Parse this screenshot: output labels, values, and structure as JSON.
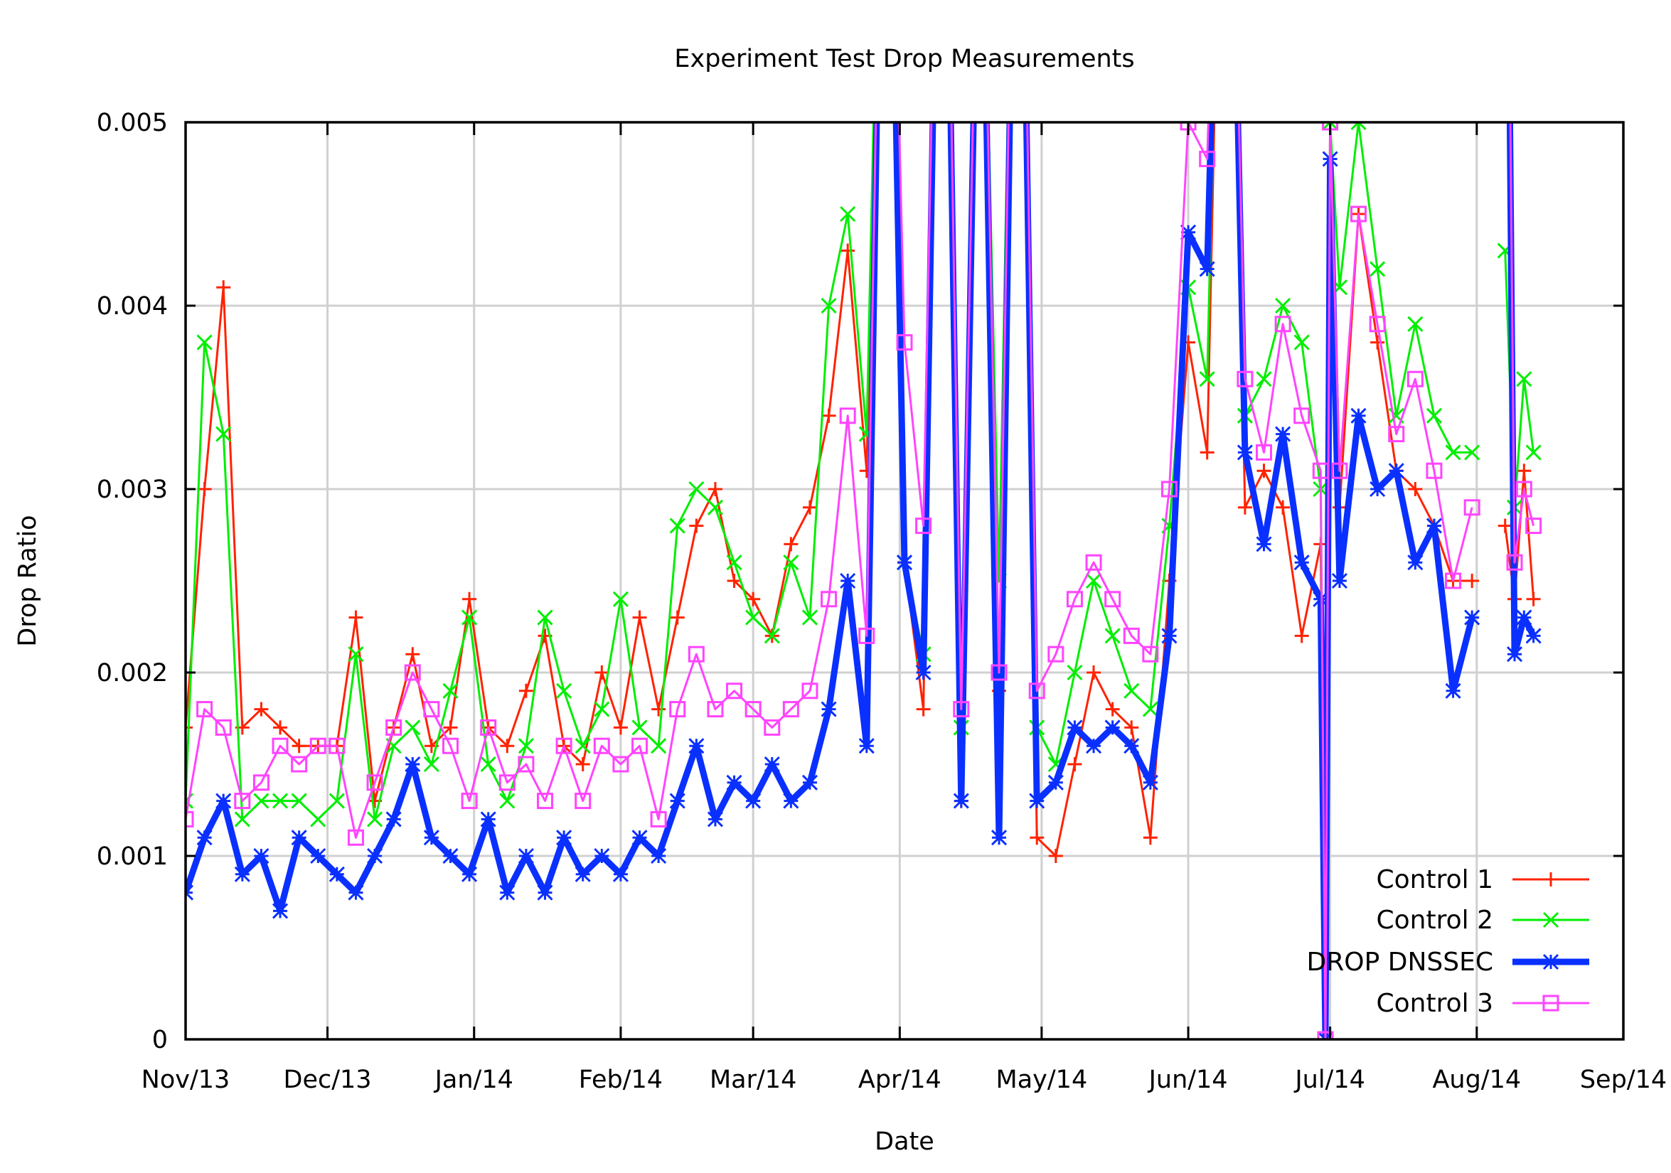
{
  "chart_data": {
    "type": "line",
    "title": "Experiment Test Drop Measurements",
    "xlabel": "Date",
    "ylabel": "Drop Ratio",
    "xlim": [
      "2013-11-01",
      "2014-09-01"
    ],
    "ylim": [
      0,
      0.005
    ],
    "grid": true,
    "legend": "bottom-right",
    "x_ticks": [
      {
        "date": "2013-11-01",
        "label": "Nov/13"
      },
      {
        "date": "2013-12-01",
        "label": "Dec/13"
      },
      {
        "date": "2014-01-01",
        "label": "Jan/14"
      },
      {
        "date": "2014-02-01",
        "label": "Feb/14"
      },
      {
        "date": "2014-03-01",
        "label": "Mar/14"
      },
      {
        "date": "2014-04-01",
        "label": "Apr/14"
      },
      {
        "date": "2014-05-01",
        "label": "May/14"
      },
      {
        "date": "2014-06-01",
        "label": "Jun/14"
      },
      {
        "date": "2014-07-01",
        "label": "Jul/14"
      },
      {
        "date": "2014-08-01",
        "label": "Aug/14"
      },
      {
        "date": "2014-09-01",
        "label": "Sep/14"
      }
    ],
    "y_ticks": [
      {
        "value": 0,
        "label": "0"
      },
      {
        "value": 0.001,
        "label": "0.001"
      },
      {
        "value": 0.002,
        "label": "0.002"
      },
      {
        "value": 0.003,
        "label": "0.003"
      },
      {
        "value": 0.004,
        "label": "0.004"
      },
      {
        "value": 0.005,
        "label": "0.005"
      }
    ],
    "x": [
      "2013-11-01",
      "2013-11-05",
      "2013-11-09",
      "2013-11-13",
      "2013-11-17",
      "2013-11-21",
      "2013-11-25",
      "2013-11-29",
      "2013-12-03",
      "2013-12-07",
      "2013-12-11",
      "2013-12-15",
      "2013-12-19",
      "2013-12-23",
      "2013-12-27",
      "2013-12-31",
      "2014-01-04",
      "2014-01-08",
      "2014-01-12",
      "2014-01-16",
      "2014-01-20",
      "2014-01-24",
      "2014-01-28",
      "2014-02-01",
      "2014-02-05",
      "2014-02-09",
      "2014-02-13",
      "2014-02-17",
      "2014-02-21",
      "2014-02-25",
      "2014-03-01",
      "2014-03-05",
      "2014-03-09",
      "2014-03-13",
      "2014-03-17",
      "2014-03-21",
      "2014-03-25",
      "2014-03-29",
      "2014-04-02",
      "2014-04-06",
      "2014-04-10",
      "2014-04-14",
      "2014-04-18",
      "2014-04-22",
      "2014-04-26",
      "2014-04-30",
      "2014-05-04",
      "2014-05-08",
      "2014-05-12",
      "2014-05-16",
      "2014-05-20",
      "2014-05-24",
      "2014-05-28",
      "2014-06-01",
      "2014-06-05",
      "2014-06-09",
      "2014-06-13",
      "2014-06-17",
      "2014-06-21",
      "2014-06-25",
      "2014-06-29",
      "2014-06-30",
      "2014-07-01",
      "2014-07-03",
      "2014-07-07",
      "2014-07-11",
      "2014-07-15",
      "2014-07-19",
      "2014-07-23",
      "2014-07-27",
      "2014-07-31",
      "2014-08-04",
      "2014-08-07",
      "2014-08-09",
      "2014-08-11",
      "2014-08-13"
    ],
    "series": [
      {
        "name": "Control 1",
        "color": "#ff2200",
        "marker": "plus",
        "line_weight": "thin",
        "values": [
          0.0017,
          0.003,
          0.0041,
          0.0017,
          0.0018,
          0.0017,
          0.0016,
          0.0016,
          0.0016,
          0.0023,
          0.0013,
          0.0017,
          0.0021,
          0.0016,
          0.0017,
          0.0024,
          0.0017,
          0.0016,
          0.0019,
          0.0022,
          0.0016,
          0.0015,
          0.002,
          0.0017,
          0.0023,
          0.0018,
          0.0023,
          0.0028,
          0.003,
          0.0025,
          0.0024,
          0.0022,
          0.0027,
          0.0029,
          0.0034,
          0.0043,
          0.0031,
          0.008,
          0.0026,
          0.0018,
          0.008,
          0.0013,
          0.007,
          0.0019,
          0.008,
          0.0011,
          0.001,
          0.0015,
          0.002,
          0.0018,
          0.0017,
          0.0011,
          0.0025,
          0.0038,
          0.0032,
          0.008,
          0.0029,
          0.0031,
          0.0029,
          0.0022,
          0.0027,
          0,
          0.005,
          0.0029,
          0.0045,
          0.0038,
          0.0031,
          0.003,
          0.0028,
          0.0025,
          0.0025,
          null,
          0.0028,
          0.0024,
          0.0031,
          0.0024
        ]
      },
      {
        "name": "Control 2",
        "color": "#00ee00",
        "marker": "cross",
        "line_weight": "thin",
        "values": [
          0.0013,
          0.0038,
          0.0033,
          0.0012,
          0.0013,
          0.0013,
          0.0013,
          0.0012,
          0.0013,
          0.0021,
          0.0012,
          0.0016,
          0.0017,
          0.0015,
          0.0019,
          0.0023,
          0.0015,
          0.0013,
          0.0016,
          0.0023,
          0.0019,
          0.0016,
          0.0018,
          0.0024,
          0.0017,
          0.0016,
          0.0028,
          0.003,
          0.0029,
          0.0026,
          0.0023,
          0.0022,
          0.0026,
          0.0023,
          0.004,
          0.0045,
          0.0033,
          0.008,
          0.0026,
          0.0021,
          0.008,
          0.0017,
          0.007,
          0.0025,
          0.008,
          0.0017,
          0.0015,
          0.002,
          0.0025,
          0.0022,
          0.0019,
          0.0018,
          0.0028,
          0.0041,
          0.0036,
          0.008,
          0.0034,
          0.0036,
          0.004,
          0.0038,
          0.003,
          0,
          0.005,
          0.0041,
          0.005,
          0.0042,
          0.0034,
          0.0039,
          0.0034,
          0.0032,
          0.0032,
          null,
          0.0043,
          0.0029,
          0.0036,
          0.0032
        ]
      },
      {
        "name": "DROP DNSSEC",
        "color": "#0a30ff",
        "marker": "star",
        "line_weight": "thick",
        "values": [
          0.0008,
          0.0011,
          0.0013,
          0.0009,
          0.001,
          0.0007,
          0.0011,
          0.001,
          0.0009,
          0.0008,
          0.001,
          0.0012,
          0.0015,
          0.0011,
          0.001,
          0.0009,
          0.0012,
          0.0008,
          0.001,
          0.0008,
          0.0011,
          0.0009,
          0.001,
          0.0009,
          0.0011,
          0.001,
          0.0013,
          0.0016,
          0.0012,
          0.0014,
          0.0013,
          0.0015,
          0.0013,
          0.0014,
          0.0018,
          0.0025,
          0.0016,
          0.008,
          0.0026,
          0.002,
          0.008,
          0.0013,
          0.007,
          0.0011,
          0.008,
          0.0013,
          0.0014,
          0.0017,
          0.0016,
          0.0017,
          0.0016,
          0.0014,
          0.0022,
          0.0044,
          0.0042,
          0.008,
          0.0032,
          0.0027,
          0.0033,
          0.0026,
          0.0024,
          0,
          0.0048,
          0.0025,
          0.0034,
          0.003,
          0.0031,
          0.0026,
          0.0028,
          0.0019,
          0.0023,
          null,
          0.008,
          0.0021,
          0.0023,
          0.0022
        ]
      },
      {
        "name": "Control 3",
        "color": "#ff44ff",
        "marker": "square",
        "line_weight": "thin",
        "values": [
          0.0012,
          0.0018,
          0.0017,
          0.0013,
          0.0014,
          0.0016,
          0.0015,
          0.0016,
          0.0016,
          0.0011,
          0.0014,
          0.0017,
          0.002,
          0.0018,
          0.0016,
          0.0013,
          0.0017,
          0.0014,
          0.0015,
          0.0013,
          0.0016,
          0.0013,
          0.0016,
          0.0015,
          0.0016,
          0.0012,
          0.0018,
          0.0021,
          0.0018,
          0.0019,
          0.0018,
          0.0017,
          0.0018,
          0.0019,
          0.0024,
          0.0034,
          0.0022,
          0.008,
          0.0038,
          0.0028,
          0.008,
          0.0018,
          0.007,
          0.002,
          0.008,
          0.0019,
          0.0021,
          0.0024,
          0.0026,
          0.0024,
          0.0022,
          0.0021,
          0.003,
          0.005,
          0.0048,
          0.008,
          0.0036,
          0.0032,
          0.0039,
          0.0034,
          0.0031,
          0,
          0.005,
          0.0031,
          0.0045,
          0.0039,
          0.0033,
          0.0036,
          0.0031,
          0.0025,
          0.0029,
          null,
          0.008,
          0.0026,
          0.003,
          0.0028
        ]
      }
    ]
  }
}
